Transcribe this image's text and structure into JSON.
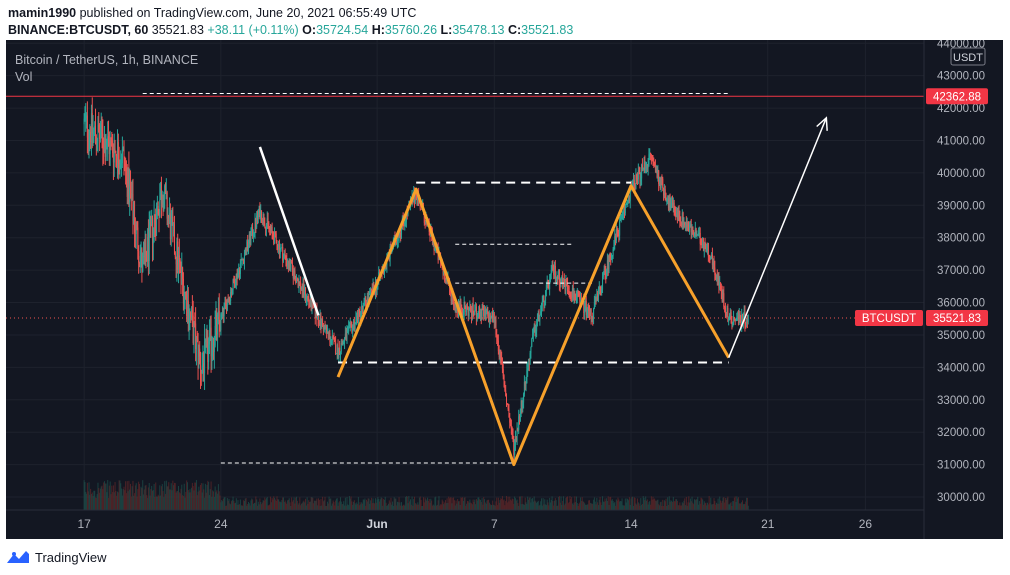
{
  "header": {
    "author": "mamin1990",
    "published": "published on TradingView.com, June 20, 2021 06:55:49 UTC",
    "symbol_line": "BINANCE:BTCUSDT, 60",
    "price": "35521.83",
    "change": "+38.11 (+0.11%)",
    "o_label": "O:",
    "o_value": "35724.54",
    "h_label": "H:",
    "h_value": "35760.26",
    "l_label": "L:",
    "l_value": "35478.13",
    "c_label": "C:",
    "c_value": "35521.83"
  },
  "legend": {
    "title": "Bitcoin / TetherUS, 1h, BINANCE",
    "vol": "Vol"
  },
  "price_axis": {
    "currency": "USDT",
    "ticks": [
      "30000.00",
      "31000.00",
      "32000.00",
      "33000.00",
      "34000.00",
      "35000.00",
      "36000.00",
      "37000.00",
      "38000.00",
      "39000.00",
      "40000.00",
      "41000.00",
      "42000.00",
      "43000.00",
      "44000.00"
    ]
  },
  "labels": {
    "resistance_value": "42362.88",
    "symbol_tag": "BTCUSDT",
    "current_price": "35521.83"
  },
  "time_axis": {
    "ticks": [
      "17",
      "24",
      "Jun",
      "7",
      "14",
      "21",
      "26"
    ]
  },
  "footer": {
    "brand": "TradingView"
  },
  "colors": {
    "background": "#131722",
    "up": "#26a69a",
    "down": "#ef5350",
    "pattern": "#f7a12b",
    "resistance": "#f23645"
  },
  "chart_data": {
    "type": "candlestick",
    "y_range": [
      29600,
      44100
    ],
    "x_range_days": [
      "May 13",
      "Jun 29"
    ],
    "resistance_level": 42362.88,
    "current_price": 35521.83,
    "anchors": [
      {
        "date": "May 17",
        "price": 41500
      },
      {
        "date": "May 19",
        "price": 40500
      },
      {
        "date": "May 20",
        "price": 37000
      },
      {
        "date": "May 21",
        "price": 39500
      },
      {
        "date": "May 23",
        "price": 34000
      },
      {
        "date": "May 24",
        "price": 35500
      },
      {
        "date": "May 26",
        "price": 38800
      },
      {
        "date": "May 29",
        "price": 35500
      },
      {
        "date": "May 30",
        "price": 34500
      },
      {
        "date": "Jun 1",
        "price": 36600
      },
      {
        "date": "Jun 3",
        "price": 39400
      },
      {
        "date": "Jun 5",
        "price": 35900
      },
      {
        "date": "Jun 7",
        "price": 35500
      },
      {
        "date": "Jun 8",
        "price": 31500
      },
      {
        "date": "Jun 9",
        "price": 35000
      },
      {
        "date": "Jun 10",
        "price": 37000
      },
      {
        "date": "Jun 12",
        "price": 35600
      },
      {
        "date": "Jun 14",
        "price": 39500
      },
      {
        "date": "Jun 15",
        "price": 40500
      },
      {
        "date": "Jun 16",
        "price": 39000
      },
      {
        "date": "Jun 18",
        "price": 37600
      },
      {
        "date": "Jun 19",
        "price": 35500
      },
      {
        "date": "Jun 20",
        "price": 35521.83
      }
    ],
    "drawings": {
      "white_leg": [
        {
          "date": "May 26",
          "price": 40800
        },
        {
          "date": "May 29",
          "price": 35600
        }
      ],
      "orange_pattern": [
        {
          "date": "May 30",
          "price": 33700
        },
        {
          "date": "Jun 3",
          "price": 39500
        },
        {
          "date": "Jun 8",
          "price": 31000
        },
        {
          "date": "Jun 14",
          "price": 39600
        },
        {
          "date": "Jun 19",
          "price": 34300
        }
      ],
      "projection_arrow": [
        {
          "date": "Jun 19",
          "price": 34300
        },
        {
          "date": "Jun 24",
          "price": 41700
        }
      ],
      "dashed_levels": [
        {
          "price": 42450,
          "from": "May 20",
          "to": "Jun 19"
        },
        {
          "price": 39700,
          "from": "Jun 3",
          "to": "Jun 14"
        },
        {
          "price": 37800,
          "from": "Jun 5",
          "to": "Jun 11"
        },
        {
          "price": 36600,
          "from": "Jun 5",
          "to": "Jun 12"
        },
        {
          "price": 34150,
          "from": "May 30",
          "to": "Jun 19"
        },
        {
          "price": 31050,
          "from": "May 24",
          "to": "Jun 8"
        }
      ]
    }
  }
}
